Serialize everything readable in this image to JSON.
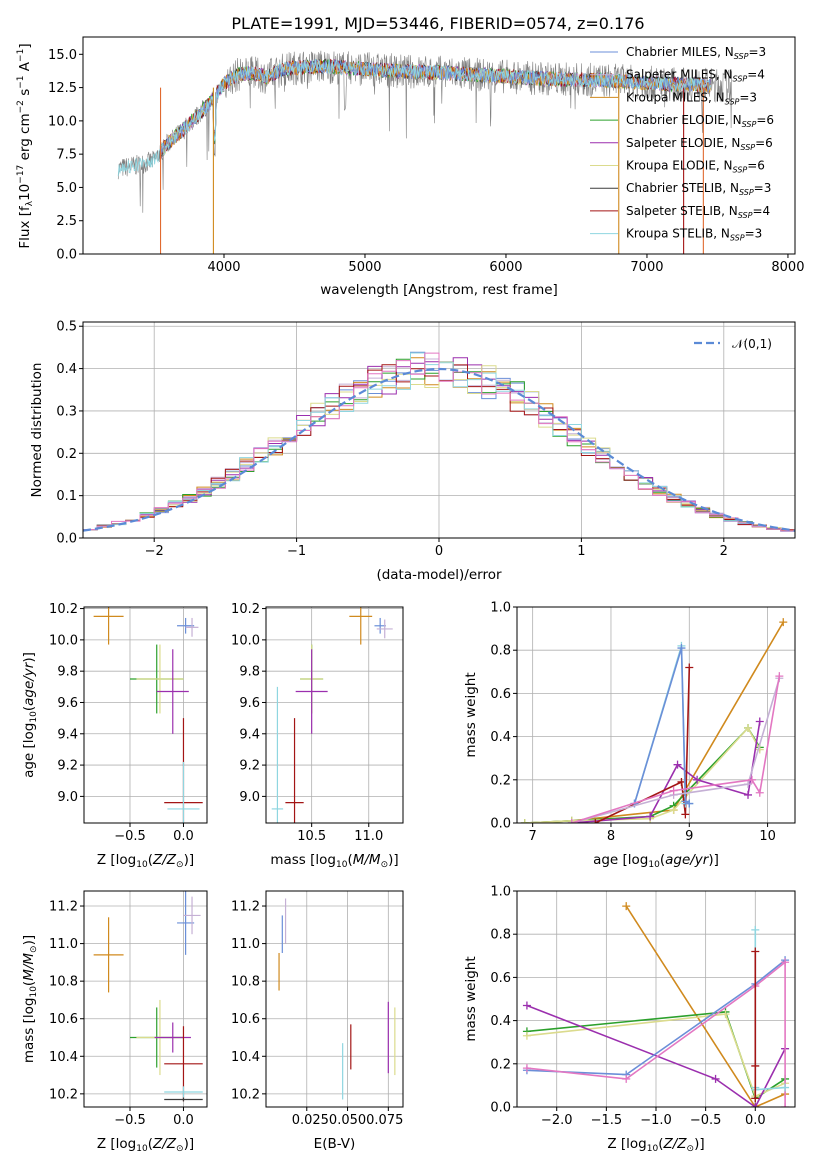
{
  "title": "PLATE=1991, MJD=53446, FIBERID=0574, z=0.176",
  "colors": [
    "#7f7f7f",
    "#c5b0d5",
    "#d08a1e",
    "#2ca02c",
    "#9b2fae",
    "#dbdb8d",
    "#3b3b3b",
    "#a31515",
    "#8fd6e0"
  ],
  "chart_data": [
    {
      "id": "spectrum",
      "type": "line",
      "xlabel": "wavelength [Angstrom, rest frame]",
      "ylabel": "Flux [f_λ 10^-17 erg cm^-2 s^-1 A^-1]",
      "xlim": [
        3000,
        8050
      ],
      "ylim": [
        0,
        16.3
      ],
      "xticks": [
        4000,
        5000,
        6000,
        7000,
        8000
      ],
      "yticks": [
        0.0,
        2.5,
        5.0,
        7.5,
        10.0,
        12.5,
        15.0
      ],
      "legend_position": "top-right",
      "legend": [
        "Chabrier MILES, N_SSP=3",
        "Salpeter MILES, N_SSP=4",
        "Kroupa MILES, N_SSP=3",
        "Chabrier ELODIE, N_SSP=6",
        "Salpeter ELODIE, N_SSP=6",
        "Kroupa ELODIE, N_SSP=6",
        "Chabrier STELIB, N_SSP=3",
        "Salpeter STELIB, N_SSP=4",
        "Kroupa STELIB, N_SSP=3"
      ],
      "series_continuum": {
        "x": [
          3250,
          3400,
          3500,
          3600,
          3700,
          3800,
          3900,
          4000,
          4100,
          4200,
          4300,
          4400,
          4500,
          4700,
          5000,
          5300,
          5600,
          5900,
          6200,
          6500,
          6800,
          7100,
          7400,
          7600
        ],
        "y": [
          6.4,
          6.7,
          7.0,
          8.3,
          9.2,
          10.3,
          11.3,
          12.8,
          13.5,
          13.6,
          13.3,
          13.8,
          14.0,
          14.1,
          13.9,
          13.7,
          13.6,
          13.4,
          13.2,
          13.1,
          13.0,
          12.8,
          12.7,
          12.6
        ]
      }
    },
    {
      "id": "residuals",
      "type": "histogram",
      "xlabel": "(data-model)/error",
      "ylabel": "Normed distribution",
      "xlim": [
        -2.5,
        2.5
      ],
      "ylim": [
        0,
        0.51
      ],
      "xticks": [
        -2,
        -1,
        0,
        1,
        2
      ],
      "yticks": [
        0.0,
        0.1,
        0.2,
        0.3,
        0.4,
        0.5
      ],
      "grid": true,
      "legend_position": "top-right",
      "reference": "𝒩(0,1)"
    },
    {
      "id": "z-age",
      "type": "scatter",
      "xlabel": "Z [log10(Z/Z⊙)]",
      "ylabel": "age  [log10(age/yr)]",
      "xlim": [
        -0.93,
        0.22
      ],
      "ylim": [
        8.83,
        10.21
      ],
      "xticks": [
        -0.5,
        0.0
      ],
      "yticks": [
        9.0,
        9.2,
        9.4,
        9.6,
        9.8,
        10.0,
        10.2
      ],
      "grid": true,
      "points": [
        {
          "c": 2,
          "x": -0.7,
          "y": 10.15,
          "xe": 0.14,
          "ye": 0.18
        },
        {
          "c": 0,
          "x": 0.02,
          "y": 10.09,
          "xe": 0.08,
          "ye": 0.05
        },
        {
          "c": 1,
          "x": 0.08,
          "y": 10.08,
          "xe": 0.06,
          "ye": 0.06
        },
        {
          "c": 3,
          "x": -0.25,
          "y": 9.75,
          "xe": 0.25,
          "ye": 0.22
        },
        {
          "c": 5,
          "x": -0.22,
          "y": 9.75,
          "xe": 0.22,
          "ye": 0.22
        },
        {
          "c": 4,
          "x": -0.1,
          "y": 9.67,
          "xe": 0.15,
          "ye": 0.27
        },
        {
          "c": 7,
          "x": 0.0,
          "y": 8.96,
          "xe": 0.18,
          "ye": 0.54
        },
        {
          "c": 8,
          "x": 0.0,
          "y": 8.92,
          "xe": 0.15,
          "ye": 0.3
        }
      ]
    },
    {
      "id": "mass-age",
      "type": "scatter",
      "xlabel": "mass [log10(M/M⊙)]",
      "ylabel": "",
      "xlim": [
        10.1,
        11.3
      ],
      "ylim": [
        8.83,
        10.21
      ],
      "xticks": [
        10.5,
        11.0
      ],
      "yticks": [
        9.0,
        9.2,
        9.4,
        9.6,
        9.8,
        10.0,
        10.2
      ],
      "grid": true,
      "points": [
        {
          "c": 2,
          "x": 10.93,
          "y": 10.15,
          "xe": 0.1,
          "ye": 0.18
        },
        {
          "c": 0,
          "x": 11.1,
          "y": 10.09,
          "xe": 0.05,
          "ye": 0.05
        },
        {
          "c": 1,
          "x": 11.14,
          "y": 10.07,
          "xe": 0.07,
          "ye": 0.06
        },
        {
          "c": 3,
          "x": 10.5,
          "y": 9.75,
          "xe": 0.1,
          "ye": 0.22
        },
        {
          "c": 5,
          "x": 10.5,
          "y": 9.75,
          "xe": 0.1,
          "ye": 0.22
        },
        {
          "c": 4,
          "x": 10.5,
          "y": 9.67,
          "xe": 0.14,
          "ye": 0.27
        },
        {
          "c": 7,
          "x": 10.35,
          "y": 8.96,
          "xe": 0.08,
          "ye": 0.54
        },
        {
          "c": 8,
          "x": 10.2,
          "y": 8.92,
          "xe": 0.05,
          "ye": 0.78
        }
      ]
    },
    {
      "id": "age-weight",
      "type": "line",
      "xlabel": "age  [log10(age/yr)]",
      "ylabel": "mass weight",
      "xlim": [
        6.8,
        10.35
      ],
      "ylim": [
        0,
        1.0
      ],
      "xticks": [
        7,
        8,
        9,
        10
      ],
      "yticks": [
        0.0,
        0.2,
        0.4,
        0.6,
        0.8,
        1.0
      ],
      "grid": true,
      "series": [
        {
          "c": 2,
          "x": [
            6.9,
            7.5,
            8.8,
            10.2
          ],
          "y": [
            0.0,
            0.01,
            0.06,
            0.93
          ]
        },
        {
          "c": 3,
          "x": [
            6.9,
            7.5,
            8.5,
            8.8,
            9.75,
            9.9
          ],
          "y": [
            0.0,
            0.01,
            0.03,
            0.08,
            0.44,
            0.35
          ]
        },
        {
          "c": 5,
          "x": [
            6.9,
            7.5,
            8.5,
            8.8,
            9.75,
            9.9
          ],
          "y": [
            0.0,
            0.01,
            0.02,
            0.06,
            0.44,
            0.34
          ]
        },
        {
          "c": 4,
          "x": [
            7.5,
            8.5,
            8.85,
            9.1,
            9.75,
            9.9
          ],
          "y": [
            0.0,
            0.03,
            0.27,
            0.2,
            0.13,
            0.47
          ]
        },
        {
          "c": 7,
          "x": [
            7.8,
            8.9,
            8.95,
            9.0
          ],
          "y": [
            0.0,
            0.19,
            0.04,
            0.72
          ]
        },
        {
          "c": 8,
          "x": [
            8.3,
            8.9,
            8.95,
            9.0
          ],
          "y": [
            0.09,
            0.82,
            0.09,
            0.09
          ]
        },
        {
          "c": 0,
          "x": [
            8.3,
            8.9,
            8.95,
            9.0
          ],
          "y": [
            0.09,
            0.81,
            0.1,
            0.09
          ]
        },
        {
          "c": 1,
          "x": [
            7.5,
            8.8,
            9.75,
            10.15
          ],
          "y": [
            0.0,
            0.13,
            0.18,
            0.67
          ]
        },
        {
          "c": 10,
          "x": [
            7.5,
            8.8,
            9.8,
            9.9,
            10.15
          ],
          "y": [
            0.0,
            0.15,
            0.2,
            0.14,
            0.68
          ]
        }
      ]
    },
    {
      "id": "z-mass",
      "type": "scatter",
      "xlabel": "Z [log10(Z/Z⊙)]",
      "ylabel": "mass [log10(M/M⊙)]",
      "xlim": [
        -0.93,
        0.22
      ],
      "ylim": [
        10.13,
        11.28
      ],
      "xticks": [
        -0.5,
        0.0
      ],
      "yticks": [
        10.2,
        10.4,
        10.6,
        10.8,
        11.0,
        11.2
      ],
      "grid": true,
      "points": [
        {
          "c": 2,
          "x": -0.7,
          "y": 10.94,
          "xe": 0.14,
          "ye": 0.2
        },
        {
          "c": 0,
          "x": 0.02,
          "y": 11.11,
          "xe": 0.08,
          "ye": 0.17
        },
        {
          "c": 1,
          "x": 0.08,
          "y": 11.15,
          "xe": 0.08,
          "ye": 0.1
        },
        {
          "c": 3,
          "x": -0.25,
          "y": 10.5,
          "xe": 0.25,
          "ye": 0.16
        },
        {
          "c": 5,
          "x": -0.22,
          "y": 10.5,
          "xe": 0.22,
          "ye": 0.2
        },
        {
          "c": 4,
          "x": -0.1,
          "y": 10.5,
          "xe": 0.17,
          "ye": 0.08
        },
        {
          "c": 7,
          "x": 0.0,
          "y": 10.36,
          "xe": 0.18,
          "ye": 0.2
        },
        {
          "c": 8,
          "x": 0.0,
          "y": 10.21,
          "xe": 0.18,
          "ye": 0.03
        },
        {
          "c": 6,
          "x": 0.0,
          "y": 10.17,
          "xe": 0.18,
          "ye": 0.01
        }
      ]
    },
    {
      "id": "ebv-mass",
      "type": "scatter",
      "xlabel": "E(B-V)",
      "ylabel": "",
      "xlim": [
        0.0,
        0.084
      ],
      "ylim": [
        10.13,
        11.28
      ],
      "xticks": [
        0.025,
        0.05,
        0.075
      ],
      "xticklabels": [
        "0.0250.0500.075"
      ],
      "yticks": [
        10.2,
        10.4,
        10.6,
        10.8,
        11.0,
        11.2
      ],
      "grid": true,
      "points": [
        {
          "c": 2,
          "x": 0.008,
          "y": 10.85,
          "ye": 0.1
        },
        {
          "c": 0,
          "x": 0.01,
          "y": 11.05,
          "ye": 0.1
        },
        {
          "c": 1,
          "x": 0.012,
          "y": 11.12,
          "ye": 0.12
        },
        {
          "c": 8,
          "x": 0.047,
          "y": 10.32,
          "ye": 0.15
        },
        {
          "c": 7,
          "x": 0.052,
          "y": 10.45,
          "ye": 0.12
        },
        {
          "c": 4,
          "x": 0.075,
          "y": 10.5,
          "ye": 0.19
        },
        {
          "c": 5,
          "x": 0.079,
          "y": 10.48,
          "ye": 0.18
        }
      ]
    },
    {
      "id": "z-weight",
      "type": "line",
      "xlabel": "Z [log10(Z/Z⊙)]",
      "ylabel": "mass weight",
      "xlim": [
        -2.4,
        0.4
      ],
      "ylim": [
        0,
        1.0
      ],
      "xticks": [
        -2.0,
        -1.5,
        -1.0,
        -0.5,
        0.0
      ],
      "yticks": [
        0.0,
        0.2,
        0.4,
        0.6,
        0.8,
        1.0
      ],
      "grid": true,
      "series": [
        {
          "c": 2,
          "x": [
            -1.3,
            0.0,
            0.3
          ],
          "y": [
            0.93,
            0.0,
            0.06
          ]
        },
        {
          "c": 3,
          "x": [
            -2.3,
            -0.3,
            0.0,
            0.3
          ],
          "y": [
            0.35,
            0.44,
            0.04,
            0.13
          ]
        },
        {
          "c": 5,
          "x": [
            -2.3,
            -0.3,
            0.0,
            0.3
          ],
          "y": [
            0.33,
            0.43,
            0.05,
            0.11
          ]
        },
        {
          "c": 4,
          "x": [
            -2.3,
            -0.4,
            0.0,
            0.3
          ],
          "y": [
            0.47,
            0.13,
            0.0,
            0.27
          ]
        },
        {
          "c": 0,
          "x": [
            -2.3,
            -1.3,
            0.0,
            0.3
          ],
          "y": [
            0.17,
            0.15,
            0.57,
            0.68
          ]
        },
        {
          "c": 10,
          "x": [
            -2.3,
            -1.3,
            0.0,
            0.3,
            0.3
          ],
          "y": [
            0.18,
            0.13,
            0.56,
            0.67,
            0.0
          ]
        },
        {
          "c": 8,
          "x": [
            0.0,
            0.0,
            0.0,
            0.3
          ],
          "y": [
            0.82,
            0.09,
            0.08,
            0.09
          ]
        },
        {
          "c": 7,
          "x": [
            0.0,
            0.0,
            0.0
          ],
          "y": [
            0.72,
            0.19,
            0.04
          ]
        }
      ]
    }
  ]
}
